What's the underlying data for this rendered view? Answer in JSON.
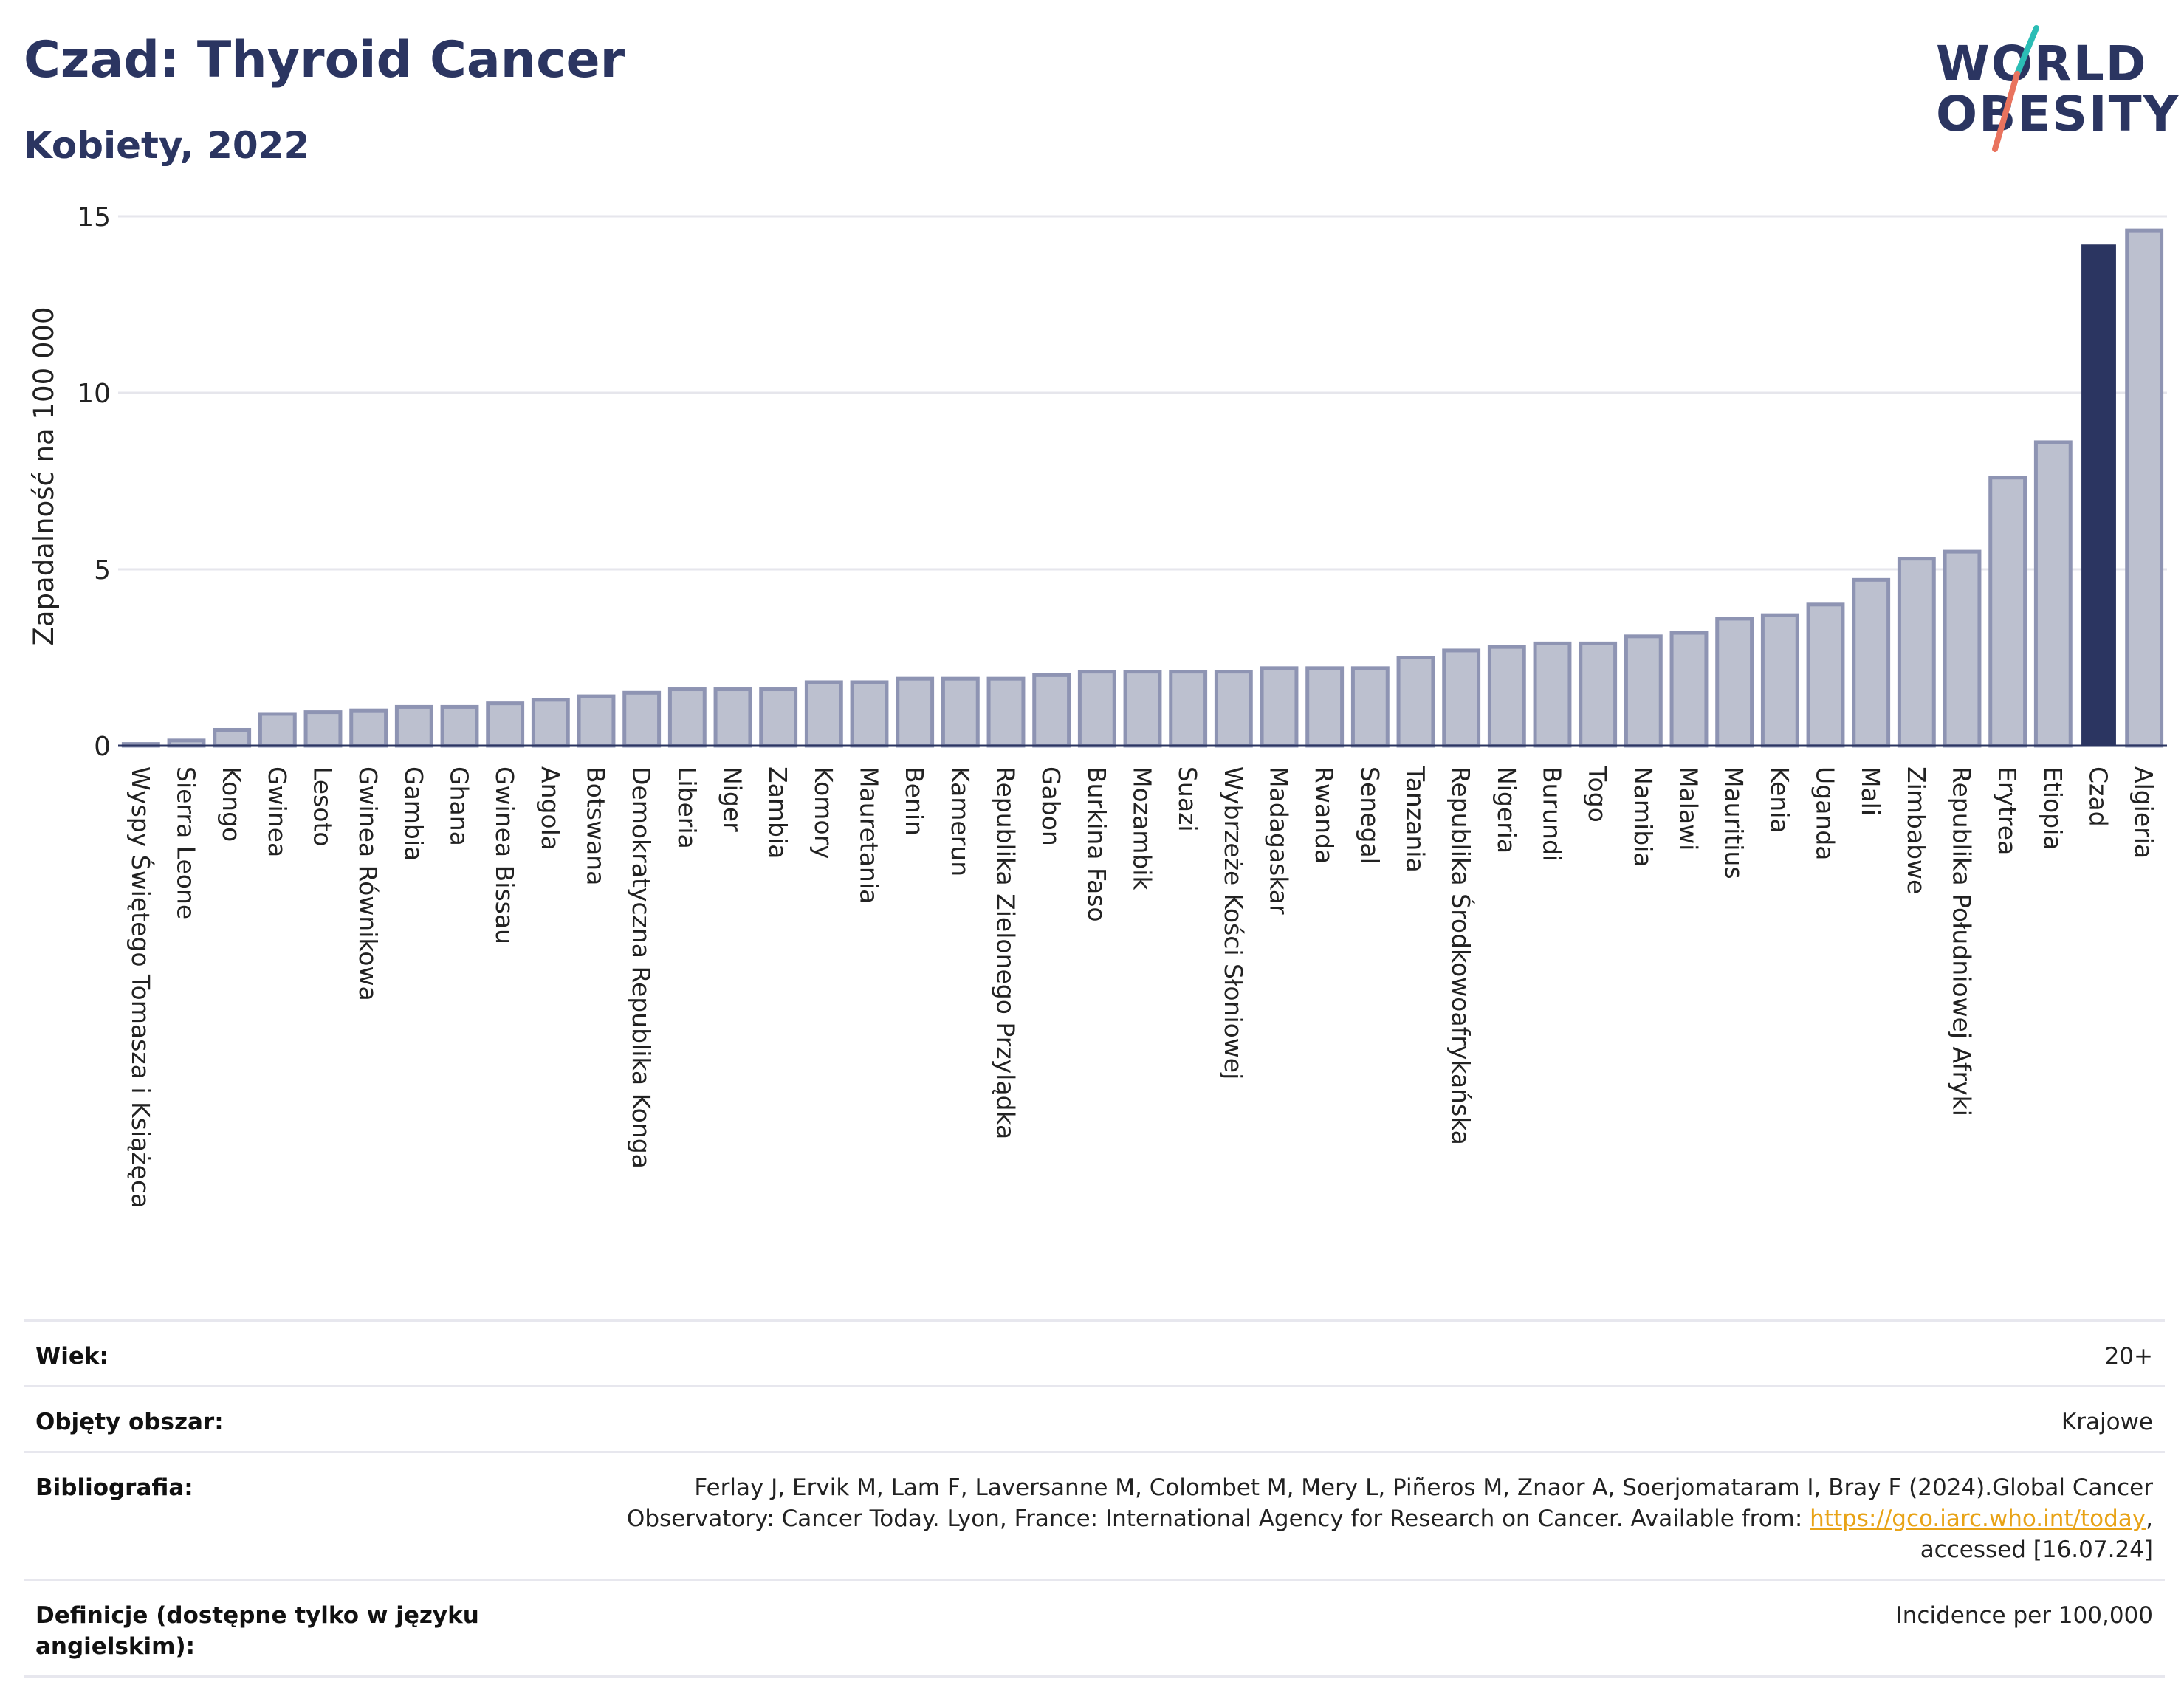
{
  "title": "Czad: Thyroid Cancer",
  "subtitle": "Kobiety, 2022",
  "logo": {
    "line1": "WORLD",
    "line2": "OBESITY"
  },
  "colors": {
    "title": "#2b3561",
    "bar": "#bcc0cf",
    "bar_border": "#8e94b3",
    "highlight": "#2b3561",
    "gridline": "#e6e6ec",
    "link": "#e8a317",
    "logo_teal": "#2bbdb5",
    "logo_coral": "#e9735e"
  },
  "chart_data": {
    "type": "bar",
    "ylabel": "Zapadalność na 100 000",
    "xlabel": "",
    "ylim": [
      0,
      15
    ],
    "yticks": [
      0,
      5,
      10,
      15
    ],
    "grid": true,
    "highlight": "Czad",
    "categories": [
      "Wyspy Świętego Tomasza i Książęca",
      "Sierra Leone",
      "Kongo",
      "Gwinea",
      "Lesoto",
      "Gwinea Równikowa",
      "Gambia",
      "Ghana",
      "Gwinea Bissau",
      "Angola",
      "Botswana",
      "Demokratyczna Republika Konga",
      "Liberia",
      "Niger",
      "Zambia",
      "Komory",
      "Mauretania",
      "Benin",
      "Kamerun",
      "Republika Zielonego Przylądka",
      "Gabon",
      "Burkina Faso",
      "Mozambik",
      "Suazi",
      "Wybrzeże Kości Słoniowej",
      "Madagaskar",
      "Rwanda",
      "Senegal",
      "Tanzania",
      "Republika Środkowoafrykańska",
      "Nigeria",
      "Burundi",
      "Togo",
      "Namibia",
      "Malawi",
      "Mauritius",
      "Kenia",
      "Uganda",
      "Mali",
      "Zimbabwe",
      "Republika Południowej Afryki",
      "Erytrea",
      "Etiopia",
      "Czad",
      "Algieria"
    ],
    "values": [
      0.05,
      0.15,
      0.45,
      0.9,
      0.95,
      1.0,
      1.1,
      1.1,
      1.2,
      1.3,
      1.4,
      1.5,
      1.6,
      1.6,
      1.6,
      1.8,
      1.8,
      1.9,
      1.9,
      1.9,
      2.0,
      2.1,
      2.1,
      2.1,
      2.1,
      2.2,
      2.2,
      2.2,
      2.5,
      2.7,
      2.8,
      2.9,
      2.9,
      3.1,
      3.2,
      3.6,
      3.7,
      4.0,
      4.7,
      5.3,
      5.5,
      7.6,
      8.6,
      14.2,
      14.6
    ]
  },
  "info": [
    {
      "label": "Wiek:",
      "value": "20+"
    },
    {
      "label": "Objęty obszar:",
      "value": "Krajowe"
    },
    {
      "label": "Bibliografia:",
      "value_before": "Ferlay J, Ervik M, Lam F, Laversanne M, Colombet M, Mery L, Piñeros M, Znaor A, Soerjomataram I, Bray F (2024).Global Cancer Observatory: Cancer Today. Lyon, France: International Agency for Research on Cancer. Available from: ",
      "link": "https://gco.iarc.who.int/today",
      "value_after": ", accessed [16.07.24]"
    },
    {
      "label": "Definicje (dostępne tylko w języku angielskim):",
      "value": "Incidence per 100,000"
    }
  ]
}
